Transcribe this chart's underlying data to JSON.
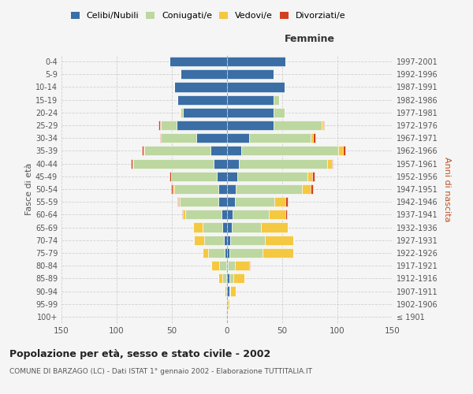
{
  "age_groups": [
    "100+",
    "95-99",
    "90-94",
    "85-89",
    "80-84",
    "75-79",
    "70-74",
    "65-69",
    "60-64",
    "55-59",
    "50-54",
    "45-49",
    "40-44",
    "35-39",
    "30-34",
    "25-29",
    "20-24",
    "15-19",
    "10-14",
    "5-9",
    "0-4"
  ],
  "birth_years": [
    "≤ 1901",
    "1902-1906",
    "1907-1911",
    "1912-1916",
    "1917-1921",
    "1922-1926",
    "1927-1931",
    "1932-1936",
    "1937-1941",
    "1942-1946",
    "1947-1951",
    "1952-1956",
    "1957-1961",
    "1962-1966",
    "1967-1971",
    "1972-1976",
    "1977-1981",
    "1982-1986",
    "1987-1991",
    "1992-1996",
    "1997-2001"
  ],
  "male_celibe": [
    0,
    0,
    1,
    1,
    1,
    2,
    3,
    4,
    5,
    8,
    8,
    9,
    12,
    15,
    28,
    46,
    40,
    45,
    48,
    42,
    52
  ],
  "male_coniugato": [
    0,
    0,
    1,
    3,
    6,
    15,
    18,
    18,
    33,
    35,
    40,
    42,
    73,
    60,
    32,
    14,
    2,
    0,
    0,
    0,
    0
  ],
  "male_vedovo": [
    0,
    0,
    1,
    4,
    7,
    5,
    9,
    9,
    2,
    1,
    1,
    0,
    1,
    1,
    0,
    1,
    1,
    0,
    0,
    0,
    0
  ],
  "male_divorziato": [
    0,
    0,
    0,
    0,
    0,
    0,
    0,
    0,
    1,
    1,
    2,
    1,
    1,
    1,
    1,
    1,
    0,
    0,
    0,
    0,
    0
  ],
  "female_celibe": [
    0,
    1,
    2,
    2,
    1,
    2,
    3,
    4,
    5,
    7,
    8,
    9,
    11,
    13,
    20,
    42,
    42,
    42,
    52,
    42,
    53
  ],
  "female_coniugato": [
    0,
    0,
    1,
    4,
    6,
    30,
    31,
    27,
    33,
    36,
    60,
    64,
    80,
    88,
    56,
    44,
    10,
    5,
    0,
    0,
    0
  ],
  "female_vedovo": [
    1,
    1,
    5,
    10,
    13,
    28,
    26,
    24,
    15,
    10,
    8,
    4,
    4,
    4,
    2,
    1,
    0,
    0,
    0,
    0,
    0
  ],
  "female_divorziato": [
    0,
    0,
    0,
    0,
    1,
    0,
    0,
    0,
    1,
    2,
    2,
    2,
    1,
    2,
    2,
    1,
    0,
    0,
    0,
    0,
    0
  ],
  "color_celibe": "#3A6EA5",
  "color_coniugato": "#BDD7A0",
  "color_vedovo": "#F5C842",
  "color_divorziato": "#D04020",
  "xlabel_right": "Femmine",
  "ylabel_left": "Fasce di età",
  "ylabel_right": "Anni di nascita",
  "title": "Popolazione per età, sesso e stato civile - 2002",
  "subtitle": "COMUNE DI BARZAGO (LC) - Dati ISTAT 1° gennaio 2002 - Elaborazione TUTTITALIA.IT",
  "xlim": 150,
  "legend_labels": [
    "Celibi/Nubili",
    "Coniugati/e",
    "Vedovi/e",
    "Divorziati/e"
  ],
  "background_color": "#f5f5f5",
  "grid_color": "#cccccc"
}
